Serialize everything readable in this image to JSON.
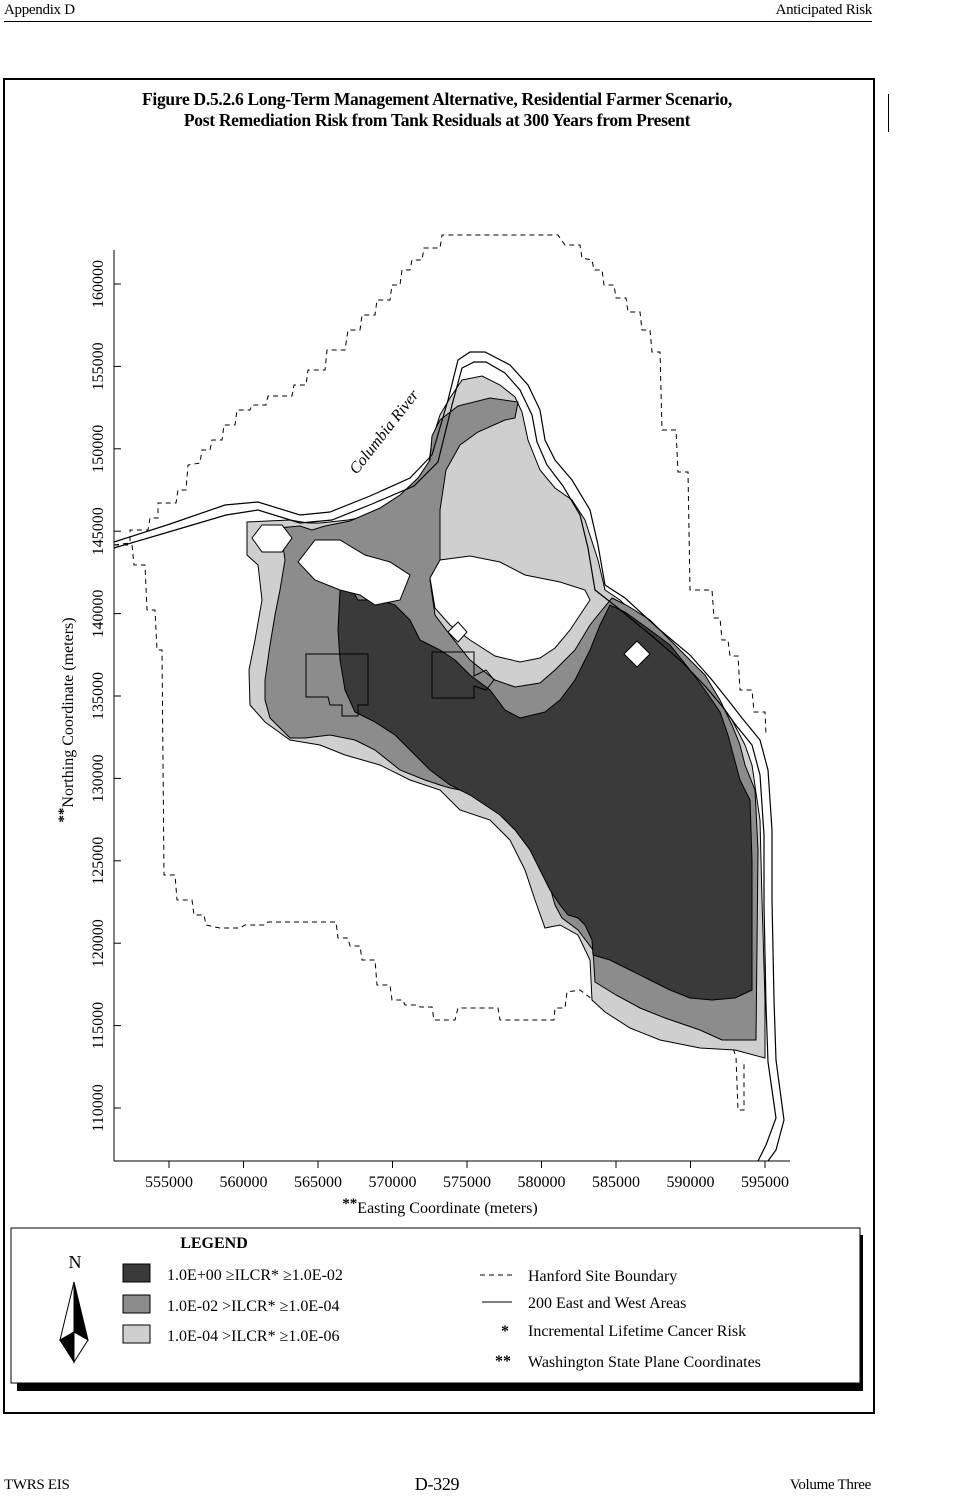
{
  "header": {
    "left": "Appendix D",
    "right": "Anticipated Risk"
  },
  "figure": {
    "title_line1": "Figure D.5.2.6  Long-Term Management Alternative, Residential Farmer Scenario,",
    "title_line2": "Post Remediation Risk from Tank Residuals at 300 Years from Present"
  },
  "axes": {
    "x": {
      "label_prefix": "**",
      "label": "Easting Coordinate (meters)",
      "ticks": [
        "555000",
        "560000",
        "565000",
        "570000",
        "575000",
        "580000",
        "585000",
        "590000",
        "595000"
      ]
    },
    "y": {
      "label_prefix": "**",
      "label": "Northing Coordinate (meters)",
      "ticks": [
        "110000",
        "115000",
        "120000",
        "125000",
        "130000",
        "135000",
        "140000",
        "145000",
        "150000",
        "155000",
        "160000"
      ]
    }
  },
  "map": {
    "river_label": "Columbia River",
    "colors": {
      "high": "#3a3a3a",
      "medium": "#8c8c8c",
      "low": "#cfcfcf",
      "background": "#ffffff"
    }
  },
  "legend": {
    "title": "LEGEND",
    "north_label": "N",
    "risk_classes": [
      {
        "range": "1.0E+00  ≥ILCR*  ≥1.0E-02",
        "color": "#3a3a3a"
      },
      {
        "range": "1.0E-02  >ILCR*  ≥1.0E-04",
        "color": "#8c8c8c"
      },
      {
        "range": "1.0E-04  >ILCR*  ≥1.0E-06",
        "color": "#cfcfcf"
      }
    ],
    "lines": [
      {
        "symbol": "- - -",
        "label": "Hanford Site Boundary"
      },
      {
        "symbol": "——",
        "label": "200 East and West Areas"
      },
      {
        "symbol": "*",
        "label": "Incremental Lifetime Cancer Risk"
      },
      {
        "symbol": "**",
        "label": "Washington State Plane Coordinates"
      }
    ]
  },
  "footer": {
    "left": "TWRS EIS",
    "center": "D-329",
    "right": "Volume Three"
  }
}
